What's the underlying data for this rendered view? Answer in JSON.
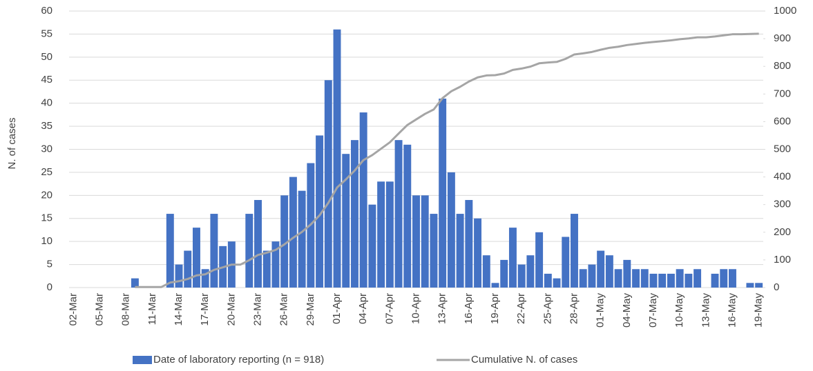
{
  "chart_data": {
    "type": "bar",
    "y_label": "N. of cases",
    "categories": [
      "02-Mar",
      null,
      null,
      "05-Mar",
      null,
      null,
      "08-Mar",
      null,
      null,
      "11-Mar",
      null,
      null,
      "14-Mar",
      null,
      null,
      "17-Mar",
      null,
      null,
      "20-Mar",
      null,
      null,
      "23-Mar",
      null,
      null,
      "26-Mar",
      null,
      null,
      "29-Mar",
      null,
      null,
      "01-Apr",
      null,
      null,
      "04-Apr",
      null,
      null,
      "07-Apr",
      null,
      null,
      "10-Apr",
      null,
      null,
      "13-Apr",
      null,
      null,
      "16-Apr",
      null,
      null,
      "19-Apr",
      null,
      null,
      "22-Apr",
      null,
      null,
      "25-Apr",
      null,
      null,
      "28-Apr",
      null,
      null,
      "01-May",
      null,
      null,
      "04-May",
      null,
      null,
      "07-May",
      null,
      null,
      "10-May",
      null,
      null,
      "13-May",
      null,
      null,
      "16-May",
      null,
      null,
      "19-May"
    ],
    "series": [
      {
        "name": "Date of laboratory reporting (n = 918)",
        "type": "bar",
        "color": "#4472c4",
        "values": [
          0,
          0,
          0,
          0,
          0,
          0,
          0,
          2,
          0,
          0,
          0,
          16,
          5,
          8,
          13,
          4,
          16,
          9,
          10,
          0,
          16,
          19,
          8,
          10,
          20,
          24,
          21,
          27,
          33,
          45,
          56,
          29,
          32,
          38,
          18,
          23,
          23,
          32,
          31,
          20,
          20,
          16,
          41,
          25,
          16,
          19,
          15,
          7,
          1,
          6,
          13,
          5,
          7,
          12,
          3,
          2,
          11,
          16,
          4,
          5,
          8,
          7,
          4,
          6,
          4,
          4,
          3,
          3,
          3,
          4,
          3,
          4,
          0,
          3,
          4,
          4,
          0,
          1,
          1
        ]
      },
      {
        "name": "Cumulative N. of cases",
        "type": "line",
        "axis": "y2",
        "color": "#a5a5a5",
        "values": [
          null,
          null,
          null,
          null,
          null,
          null,
          null,
          2,
          2,
          2,
          2,
          18,
          23,
          31,
          44,
          48,
          64,
          73,
          83,
          83,
          99,
          118,
          126,
          136,
          156,
          180,
          201,
          228,
          261,
          306,
          362,
          391,
          423,
          461,
          479,
          502,
          525,
          557,
          588,
          608,
          628,
          644,
          685,
          710,
          726,
          745,
          760,
          767,
          768,
          774,
          787,
          792,
          799,
          811,
          814,
          816,
          827,
          843,
          847,
          852,
          860,
          867,
          871,
          877,
          881,
          885,
          888,
          891,
          894,
          898,
          901,
          905,
          905,
          908,
          912,
          916,
          916,
          917,
          918
        ]
      }
    ],
    "ylim": [
      0,
      60
    ],
    "yticks": [
      0,
      5,
      10,
      15,
      20,
      25,
      30,
      35,
      40,
      45,
      50,
      55,
      60
    ],
    "y2lim": [
      0,
      1000
    ],
    "y2ticks": [
      0,
      100,
      200,
      300,
      400,
      500,
      600,
      700,
      800,
      900,
      1000
    ],
    "grid": true,
    "legend": "bottom"
  }
}
